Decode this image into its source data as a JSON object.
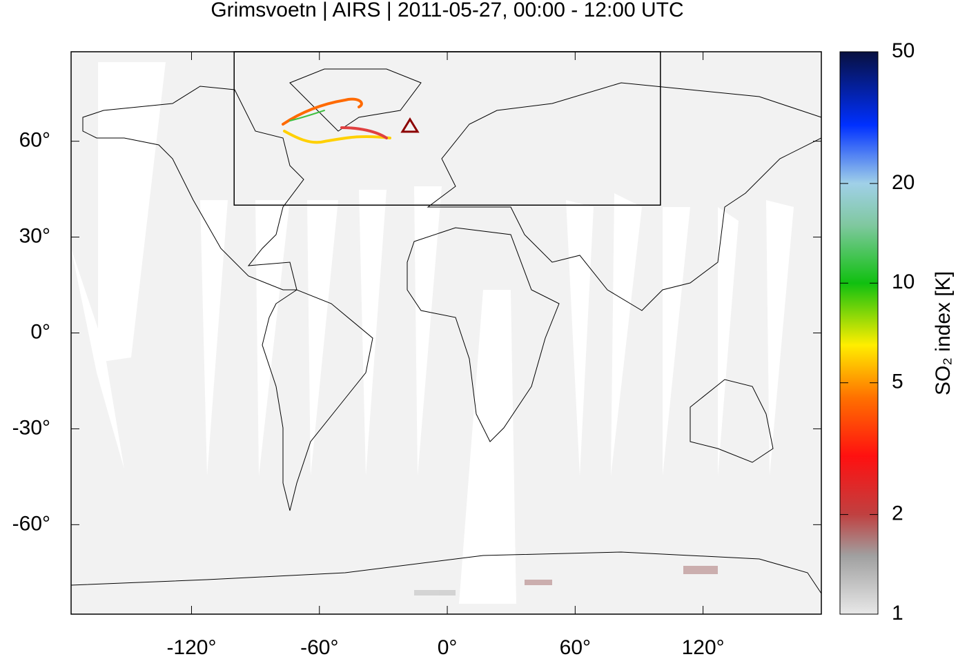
{
  "chart_data": {
    "type": "map",
    "title": "Grimsvoetn | AIRS | 2011-05-27, 00:00 - 12:00 UTC",
    "xlim": [
      -176.5,
      175.5
    ],
    "ylim": [
      -88,
      88
    ],
    "xticks": [
      {
        "value": -120,
        "label": "-120°"
      },
      {
        "value": -60,
        "label": "-60°"
      },
      {
        "value": 0,
        "label": "0°"
      },
      {
        "value": 60,
        "label": "60°"
      },
      {
        "value": 120,
        "label": "120°"
      }
    ],
    "yticks": [
      {
        "value": 60,
        "label": "60°"
      },
      {
        "value": 30,
        "label": "30°"
      },
      {
        "value": 0,
        "label": "0°"
      },
      {
        "value": -30,
        "label": "-30°"
      },
      {
        "value": -60,
        "label": "-60°"
      }
    ],
    "region": {
      "lon": [
        -100,
        100
      ],
      "lat": [
        40,
        90
      ]
    },
    "volcano": {
      "lon": -17.5,
      "lat": 64.7,
      "color": "#8b0000"
    },
    "colorbar": {
      "label": "SO₂ index [K]",
      "log": true,
      "lim": [
        1,
        50
      ],
      "ticks": [
        1,
        2,
        5,
        10,
        20,
        50
      ],
      "colormap": [
        {
          "value": 1,
          "color": "#e8e8e8"
        },
        {
          "value": 1.5,
          "color": "#a0a0a0"
        },
        {
          "value": 2,
          "color": "#c04040"
        },
        {
          "value": 3,
          "color": "#ff1010"
        },
        {
          "value": 4.5,
          "color": "#ff7000"
        },
        {
          "value": 6.5,
          "color": "#ffee00"
        },
        {
          "value": 10,
          "color": "#10c010"
        },
        {
          "value": 15,
          "color": "#80c8a0"
        },
        {
          "value": 20,
          "color": "#a0d0e8"
        },
        {
          "value": 30,
          "color": "#0030ff"
        },
        {
          "value": 50,
          "color": "#081040"
        }
      ]
    }
  }
}
